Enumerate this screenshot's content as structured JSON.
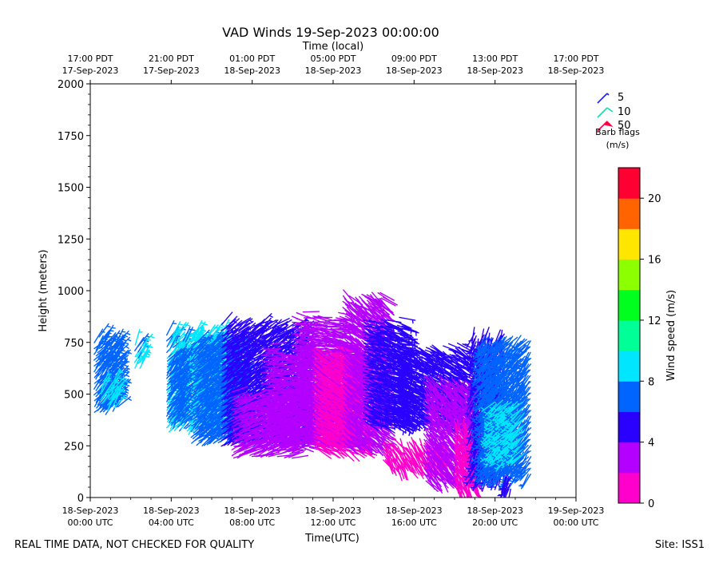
{
  "chart_data": {
    "type": "barb-plot",
    "title": "VAD Winds 19-Sep-2023 00:00:00",
    "top_axis_label": "Time (local)",
    "xlabel": "Time(UTC)",
    "ylabel": "Height (meters)",
    "xlim_utc_hours": [
      0,
      24
    ],
    "ylim": [
      0,
      2000
    ],
    "y_ticks": [
      0,
      250,
      500,
      750,
      1000,
      1250,
      1500,
      1750,
      2000
    ],
    "x_ticks_utc": [
      {
        "hour": 0,
        "line1": "18-Sep-2023",
        "line2": "00:00 UTC"
      },
      {
        "hour": 4,
        "line1": "18-Sep-2023",
        "line2": "04:00 UTC"
      },
      {
        "hour": 8,
        "line1": "18-Sep-2023",
        "line2": "08:00 UTC"
      },
      {
        "hour": 12,
        "line1": "18-Sep-2023",
        "line2": "12:00 UTC"
      },
      {
        "hour": 16,
        "line1": "18-Sep-2023",
        "line2": "16:00 UTC"
      },
      {
        "hour": 20,
        "line1": "18-Sep-2023",
        "line2": "20:00 UTC"
      },
      {
        "hour": 24,
        "line1": "19-Sep-2023",
        "line2": "00:00 UTC"
      }
    ],
    "x_ticks_local": [
      {
        "hour": 0,
        "line1": "17:00 PDT",
        "line2": "17-Sep-2023"
      },
      {
        "hour": 4,
        "line1": "21:00 PDT",
        "line2": "17-Sep-2023"
      },
      {
        "hour": 8,
        "line1": "01:00 PDT",
        "line2": "18-Sep-2023"
      },
      {
        "hour": 12,
        "line1": "05:00 PDT",
        "line2": "18-Sep-2023"
      },
      {
        "hour": 16,
        "line1": "09:00 PDT",
        "line2": "18-Sep-2023"
      },
      {
        "hour": 20,
        "line1": "13:00 PDT",
        "line2": "18-Sep-2023"
      },
      {
        "hour": 24,
        "line1": "17:00 PDT",
        "line2": "18-Sep-2023"
      }
    ],
    "barb_legend": {
      "entries": [
        {
          "label": "5",
          "color": "#1a1aff"
        },
        {
          "label": "10",
          "color": "#00e6b0"
        },
        {
          "label": "50",
          "color": "#ff0044"
        }
      ],
      "title_line1": "Barb flags",
      "title_line2": "(m/s)"
    },
    "colorbar": {
      "label": "Wind speed (m/s)",
      "range": [
        0,
        22
      ],
      "ticks": [
        0,
        4,
        8,
        12,
        16,
        20
      ],
      "bins": [
        {
          "from": 0,
          "to": 2,
          "color": "#ff00cc"
        },
        {
          "from": 2,
          "to": 4,
          "color": "#b400ff"
        },
        {
          "from": 4,
          "to": 6,
          "color": "#2a00ff"
        },
        {
          "from": 6,
          "to": 8,
          "color": "#0064ff"
        },
        {
          "from": 8,
          "to": 10,
          "color": "#00e6ff"
        },
        {
          "from": 10,
          "to": 12,
          "color": "#00ff96"
        },
        {
          "from": 12,
          "to": 14,
          "color": "#00ff1e"
        },
        {
          "from": 14,
          "to": 16,
          "color": "#8cff00"
        },
        {
          "from": 16,
          "to": 18,
          "color": "#ffe600"
        },
        {
          "from": 18,
          "to": 20,
          "color": "#ff6400"
        },
        {
          "from": 20,
          "to": 22,
          "color": "#ff0032"
        }
      ]
    },
    "segments": [
      {
        "t0": 0.2,
        "t1": 1.4,
        "zmin": 400,
        "zmax": 780,
        "speed": 7,
        "dir": 40
      },
      {
        "t0": 0.5,
        "t1": 1.3,
        "zmin": 420,
        "zmax": 560,
        "speed": 8.5,
        "dir": 30
      },
      {
        "t0": 2.2,
        "t1": 2.6,
        "zmin": 620,
        "zmax": 760,
        "speed": 8.5,
        "dir": 30
      },
      {
        "t0": 3.8,
        "t1": 6.5,
        "zmin": 300,
        "zmax": 800,
        "speed": 8.5,
        "dir": 40
      },
      {
        "t0": 3.8,
        "t1": 4.6,
        "zmin": 340,
        "zmax": 700,
        "speed": 7,
        "dir": 40
      },
      {
        "t0": 5.0,
        "t1": 7.5,
        "zmin": 250,
        "zmax": 760,
        "speed": 7,
        "dir": 50
      },
      {
        "t0": 6.5,
        "t1": 10.5,
        "zmin": 240,
        "zmax": 840,
        "speed": 5,
        "dir": 55
      },
      {
        "t0": 7.0,
        "t1": 10.0,
        "zmin": 190,
        "zmax": 520,
        "speed": 3,
        "dir": 70
      },
      {
        "t0": 8.5,
        "t1": 13.0,
        "zmin": 240,
        "zmax": 740,
        "speed": 3,
        "dir": 90
      },
      {
        "t0": 10.0,
        "t1": 12.5,
        "zmin": 250,
        "zmax": 900,
        "speed": 3,
        "dir": 100
      },
      {
        "t0": 11.0,
        "t1": 13.5,
        "zmin": 230,
        "zmax": 740,
        "speed": 1,
        "dir": 120
      },
      {
        "t0": 12.5,
        "t1": 14.5,
        "zmin": 250,
        "zmax": 1010,
        "speed": 3,
        "dir": 130
      },
      {
        "t0": 13.5,
        "t1": 15.5,
        "zmin": 350,
        "zmax": 880,
        "speed": 5,
        "dir": 110
      },
      {
        "t0": 15.0,
        "t1": 18.5,
        "zmin": 350,
        "zmax": 750,
        "speed": 5,
        "dir": 120
      },
      {
        "t0": 14.5,
        "t1": 17.5,
        "zmin": 150,
        "zmax": 300,
        "speed": 1,
        "dir": 150
      },
      {
        "t0": 16.5,
        "t1": 19.0,
        "zmin": 80,
        "zmax": 600,
        "speed": 3,
        "dir": 140
      },
      {
        "t0": 18.0,
        "t1": 19.0,
        "zmin": 40,
        "zmax": 400,
        "speed": 1,
        "dir": 160
      },
      {
        "t0": 19.0,
        "t1": 20.5,
        "zmin": 100,
        "zmax": 830,
        "speed": 5,
        "dir": 200
      },
      {
        "t0": 19.5,
        "t1": 21.8,
        "zmin": 100,
        "zmax": 800,
        "speed": 7,
        "dir": 220
      },
      {
        "t0": 20.0,
        "t1": 21.5,
        "zmin": 180,
        "zmax": 480,
        "speed": 8.5,
        "dir": 230
      },
      {
        "t0": 20.5,
        "t1": 20.8,
        "zmin": 20,
        "zmax": 110,
        "speed": 5,
        "dir": 200
      }
    ]
  },
  "footer": {
    "disclaimer": "REAL TIME DATA, NOT CHECKED FOR QUALITY",
    "site": "Site: ISS1"
  }
}
